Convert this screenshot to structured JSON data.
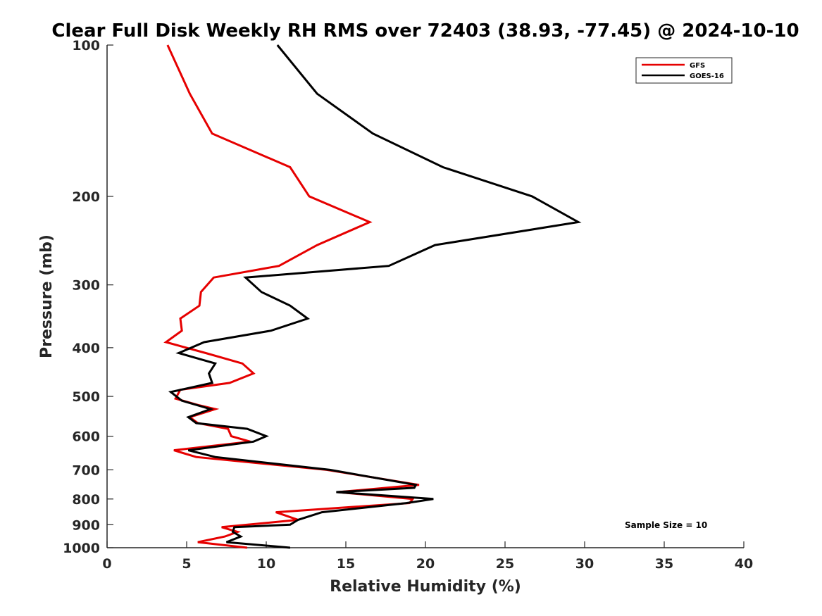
{
  "chart_data": {
    "type": "line",
    "title": "Clear Full Disk Weekly RH RMS over 72403 (38.93, -77.45) @ 2024-10-10",
    "xlabel": "Relative Humidity (%)",
    "ylabel": "Pressure (mb)",
    "xlim": [
      0,
      40
    ],
    "ylim": [
      100,
      1000
    ],
    "y_scale": "log",
    "y_direction": "reversed",
    "x_ticks": [
      0,
      5,
      10,
      15,
      20,
      25,
      30,
      35,
      40
    ],
    "x_tick_labels": [
      "0",
      "5",
      "10",
      "15",
      "20",
      "25",
      "30",
      "35",
      "40"
    ],
    "y_ticks": [
      100,
      200,
      300,
      400,
      500,
      600,
      700,
      800,
      900,
      1000
    ],
    "y_tick_labels": [
      "100",
      "200",
      "300",
      "400",
      "500",
      "600",
      "700",
      "800",
      "900",
      "1000"
    ],
    "grid": false,
    "legend_position": "top-right",
    "annotation": "Sample Size = 10",
    "series": [
      {
        "name": "GFS",
        "color": "#e60000",
        "points": [
          [
            3.8,
            100
          ],
          [
            5.2,
            125
          ],
          [
            6.6,
            150
          ],
          [
            11.5,
            175
          ],
          [
            12.7,
            200
          ],
          [
            16.5,
            225
          ],
          [
            13.2,
            250
          ],
          [
            10.8,
            275
          ],
          [
            6.7,
            290
          ],
          [
            5.9,
            310
          ],
          [
            5.8,
            330
          ],
          [
            4.6,
            350
          ],
          [
            4.7,
            370
          ],
          [
            3.7,
            390
          ],
          [
            6.2,
            410
          ],
          [
            8.5,
            430
          ],
          [
            9.2,
            450
          ],
          [
            7.7,
            470
          ],
          [
            4.6,
            485
          ],
          [
            4.3,
            505
          ],
          [
            5.7,
            520
          ],
          [
            6.8,
            530
          ],
          [
            5.2,
            550
          ],
          [
            5.7,
            565
          ],
          [
            7.6,
            580
          ],
          [
            7.8,
            600
          ],
          [
            9.0,
            615
          ],
          [
            4.2,
            640
          ],
          [
            5.6,
            660
          ],
          [
            13.8,
            700
          ],
          [
            19.6,
            750
          ],
          [
            14.5,
            775
          ],
          [
            19.2,
            800
          ],
          [
            19.0,
            815
          ],
          [
            10.6,
            850
          ],
          [
            12.0,
            880
          ],
          [
            7.2,
            910
          ],
          [
            8.2,
            930
          ],
          [
            7.4,
            950
          ],
          [
            5.7,
            975
          ],
          [
            8.8,
            1000
          ]
        ]
      },
      {
        "name": "GOES-16",
        "color": "#000000",
        "points": [
          [
            10.7,
            100
          ],
          [
            13.2,
            125
          ],
          [
            16.7,
            150
          ],
          [
            21.1,
            175
          ],
          [
            26.7,
            200
          ],
          [
            29.6,
            225
          ],
          [
            20.6,
            250
          ],
          [
            17.7,
            275
          ],
          [
            8.7,
            290
          ],
          [
            9.7,
            310
          ],
          [
            11.5,
            330
          ],
          [
            12.6,
            350
          ],
          [
            10.3,
            370
          ],
          [
            6.1,
            390
          ],
          [
            4.5,
            410
          ],
          [
            6.8,
            430
          ],
          [
            6.4,
            450
          ],
          [
            6.6,
            470
          ],
          [
            4.0,
            490
          ],
          [
            4.7,
            510
          ],
          [
            6.5,
            530
          ],
          [
            5.1,
            550
          ],
          [
            5.6,
            565
          ],
          [
            8.8,
            580
          ],
          [
            10.0,
            600
          ],
          [
            9.2,
            615
          ],
          [
            5.1,
            640
          ],
          [
            6.8,
            660
          ],
          [
            14.0,
            700
          ],
          [
            19.4,
            750
          ],
          [
            19.3,
            760
          ],
          [
            14.4,
            775
          ],
          [
            20.5,
            800
          ],
          [
            18.8,
            815
          ],
          [
            13.5,
            850
          ],
          [
            12.0,
            880
          ],
          [
            11.5,
            900
          ],
          [
            8.0,
            910
          ],
          [
            7.9,
            930
          ],
          [
            8.4,
            950
          ],
          [
            7.5,
            975
          ],
          [
            11.5,
            1000
          ]
        ]
      }
    ]
  }
}
